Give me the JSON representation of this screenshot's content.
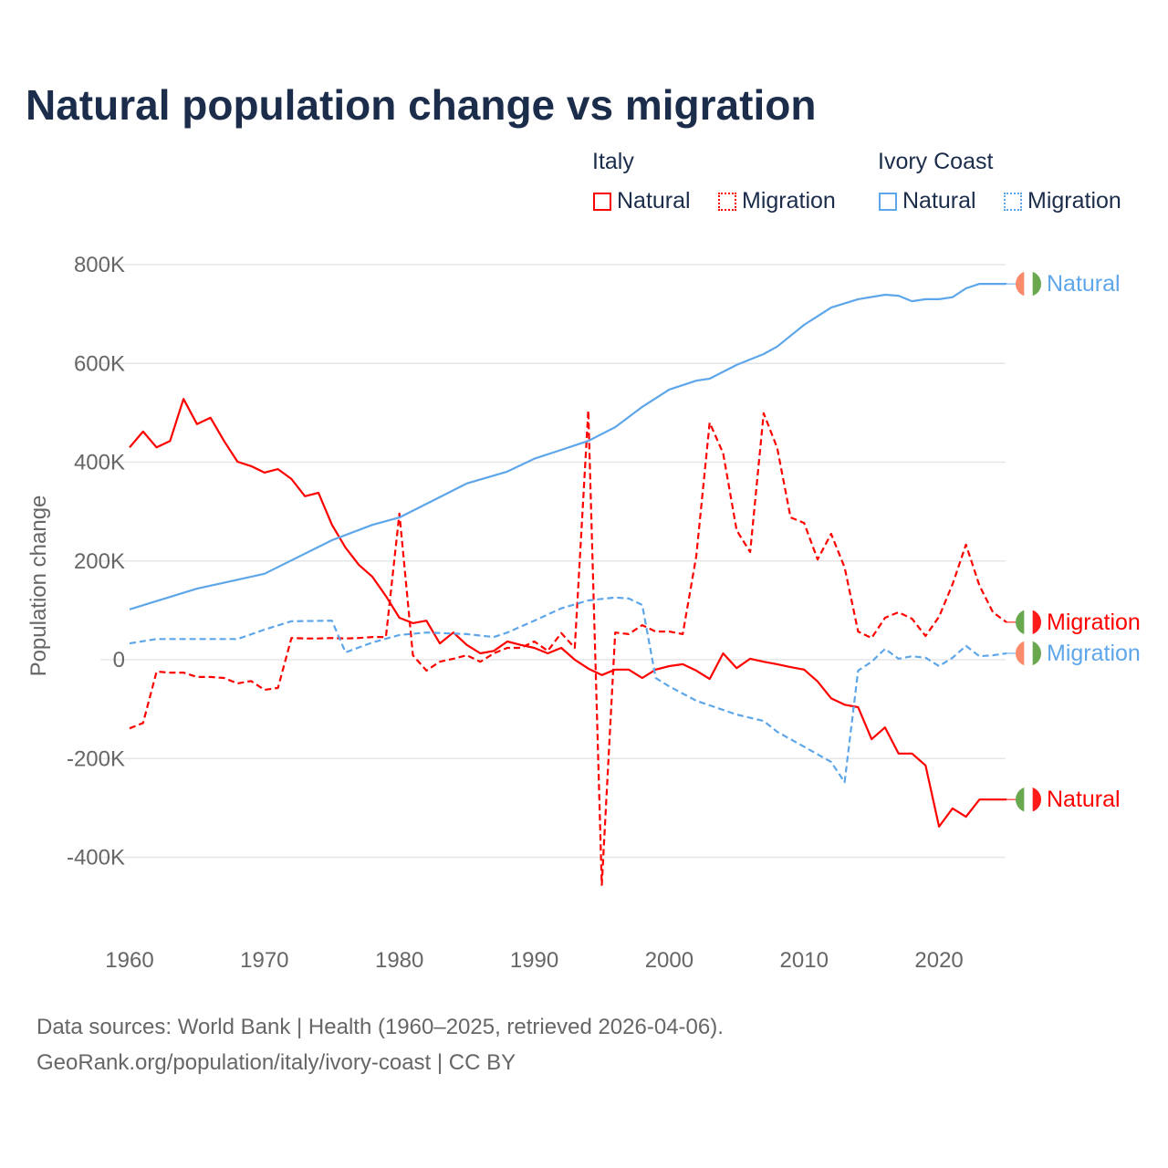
{
  "title": "Natural population change vs migration",
  "legend": {
    "groups": [
      {
        "name": "Italy",
        "items": [
          "Natural",
          "Migration"
        ],
        "color": "#ff0000"
      },
      {
        "name": "Ivory Coast",
        "items": [
          "Natural",
          "Migration"
        ],
        "color": "#5ea6ea"
      }
    ]
  },
  "footer": {
    "line1": "Data sources: World Bank | Health (1960–2025, retrieved 2026-04-06).",
    "line2": "GeoRank.org/population/italy/ivory-coast | CC BY"
  },
  "chart_data": {
    "type": "line",
    "title": "Natural population change vs migration",
    "xlabel": "",
    "ylabel": "Population change",
    "xlim": [
      1960,
      2025
    ],
    "ylim": [
      -400000,
      800000
    ],
    "xticks": [
      1960,
      1970,
      1980,
      1990,
      2000,
      2010,
      2020
    ],
    "xtick_labels": [
      "1960",
      "1970",
      "1980",
      "1990",
      "2000",
      "2010",
      "2020"
    ],
    "yticks": [
      800000,
      600000,
      400000,
      200000,
      0,
      -200000,
      -400000
    ],
    "ytick_labels": [
      "800K",
      "600K",
      "400K",
      "200K",
      "0",
      "-200K",
      "-400K"
    ],
    "grid": true,
    "legend_position": "top-right",
    "series": [
      {
        "name": "Italy Natural",
        "end_label": "Natural",
        "color": "#ff0000",
        "dash": false,
        "flag": "italy",
        "x": [
          1960,
          1961,
          1962,
          1963,
          1964,
          1965,
          1966,
          1967,
          1968,
          1969,
          1970,
          1971,
          1972,
          1973,
          1974,
          1975,
          1976,
          1977,
          1978,
          1979,
          1980,
          1981,
          1982,
          1983,
          1984,
          1985,
          1986,
          1987,
          1988,
          1989,
          1990,
          1991,
          1992,
          1993,
          1994,
          1995,
          1996,
          1997,
          1998,
          1999,
          2000,
          2001,
          2002,
          2003,
          2004,
          2005,
          2006,
          2007,
          2008,
          2009,
          2010,
          2011,
          2012,
          2013,
          2014,
          2015,
          2016,
          2017,
          2018,
          2019,
          2020,
          2021,
          2022,
          2023,
          2024,
          2025
        ],
        "values": [
          430,
          462,
          430,
          443,
          528,
          477,
          490,
          443,
          401,
          392,
          379,
          386,
          366,
          331,
          338,
          273,
          227,
          192,
          168,
          129,
          85,
          74,
          79,
          33,
          55,
          30,
          13,
          18,
          37,
          30,
          24,
          13,
          24,
          0,
          -18,
          -31,
          -20,
          -20,
          -37,
          -20,
          -13,
          -9,
          -22,
          -39,
          13,
          -17,
          2,
          -4,
          -9,
          -15,
          -20,
          -44,
          -78,
          -91,
          -96,
          -161,
          -137,
          -190,
          -190,
          -214,
          -338,
          -301,
          -318,
          -283,
          -283,
          -283
        ]
      },
      {
        "name": "Italy Migration",
        "end_label": "Migration",
        "color": "#ff0000",
        "dash": true,
        "flag": "italy",
        "x": [
          1960,
          1961,
          1962,
          1963,
          1964,
          1965,
          1966,
          1967,
          1968,
          1969,
          1970,
          1971,
          1972,
          1973,
          1974,
          1975,
          1976,
          1977,
          1978,
          1979,
          1980,
          1981,
          1982,
          1983,
          1984,
          1985,
          1986,
          1987,
          1988,
          1989,
          1990,
          1991,
          1992,
          1993,
          1994,
          1995,
          1996,
          1997,
          1998,
          1999,
          2000,
          2001,
          2002,
          2003,
          2004,
          2005,
          2006,
          2007,
          2008,
          2009,
          2010,
          2011,
          2012,
          2013,
          2014,
          2015,
          2016,
          2017,
          2018,
          2019,
          2020,
          2021,
          2022,
          2023,
          2024,
          2025
        ],
        "values": [
          -139,
          -128,
          -24,
          -26,
          -26,
          -35,
          -35,
          -37,
          -48,
          -43,
          -61,
          -57,
          44,
          43,
          43,
          44,
          43,
          44,
          46,
          46,
          296,
          9,
          -22,
          -4,
          2,
          9,
          -4,
          13,
          24,
          24,
          37,
          18,
          54,
          24,
          505,
          -456,
          55,
          52,
          70,
          57,
          57,
          52,
          209,
          480,
          418,
          262,
          218,
          499,
          429,
          288,
          277,
          203,
          255,
          187,
          57,
          44,
          85,
          96,
          83,
          48,
          87,
          153,
          233,
          150,
          96,
          76
        ]
      },
      {
        "name": "Ivory Coast Natural",
        "end_label": "Natural",
        "color": "#5ea6ea",
        "dash": false,
        "flag": "ivory-coast",
        "x": [
          1960,
          1965,
          1970,
          1975,
          1978,
          1980,
          1985,
          1988,
          1990,
          1992,
          1994,
          1996,
          1998,
          2000,
          2002,
          2003,
          2005,
          2007,
          2008,
          2010,
          2012,
          2014,
          2016,
          2017,
          2018,
          2019,
          2020,
          2021,
          2022,
          2023,
          2025
        ],
        "values": [
          102,
          144,
          174,
          242,
          273,
          288,
          357,
          381,
          407,
          425,
          443,
          471,
          512,
          547,
          565,
          569,
          597,
          619,
          634,
          678,
          713,
          730,
          739,
          737,
          726,
          730,
          730,
          734,
          752,
          761,
          761
        ]
      },
      {
        "name": "Ivory Coast Migration",
        "end_label": "Migration",
        "color": "#5ea6ea",
        "dash": true,
        "flag": "ivory-coast",
        "x": [
          1960,
          1962,
          1968,
          1970,
          1972,
          1975,
          1976,
          1978,
          1980,
          1982,
          1985,
          1987,
          1988,
          1990,
          1992,
          1994,
          1996,
          1997,
          1998,
          1999,
          2000,
          2002,
          2005,
          2007,
          2008,
          2010,
          2012,
          2013,
          2014,
          2015,
          2016,
          2017,
          2018,
          2019,
          2020,
          2021,
          2022,
          2023,
          2024,
          2025
        ],
        "values": [
          33,
          42,
          42,
          61,
          78,
          79,
          15,
          35,
          50,
          55,
          52,
          46,
          55,
          79,
          104,
          120,
          126,
          124,
          111,
          -37,
          -54,
          -83,
          -111,
          -124,
          -146,
          -176,
          -207,
          -248,
          -22,
          -4,
          22,
          2,
          7,
          4,
          -13,
          4,
          28,
          7,
          9,
          13
        ]
      }
    ],
    "value_unit": "thousands"
  }
}
